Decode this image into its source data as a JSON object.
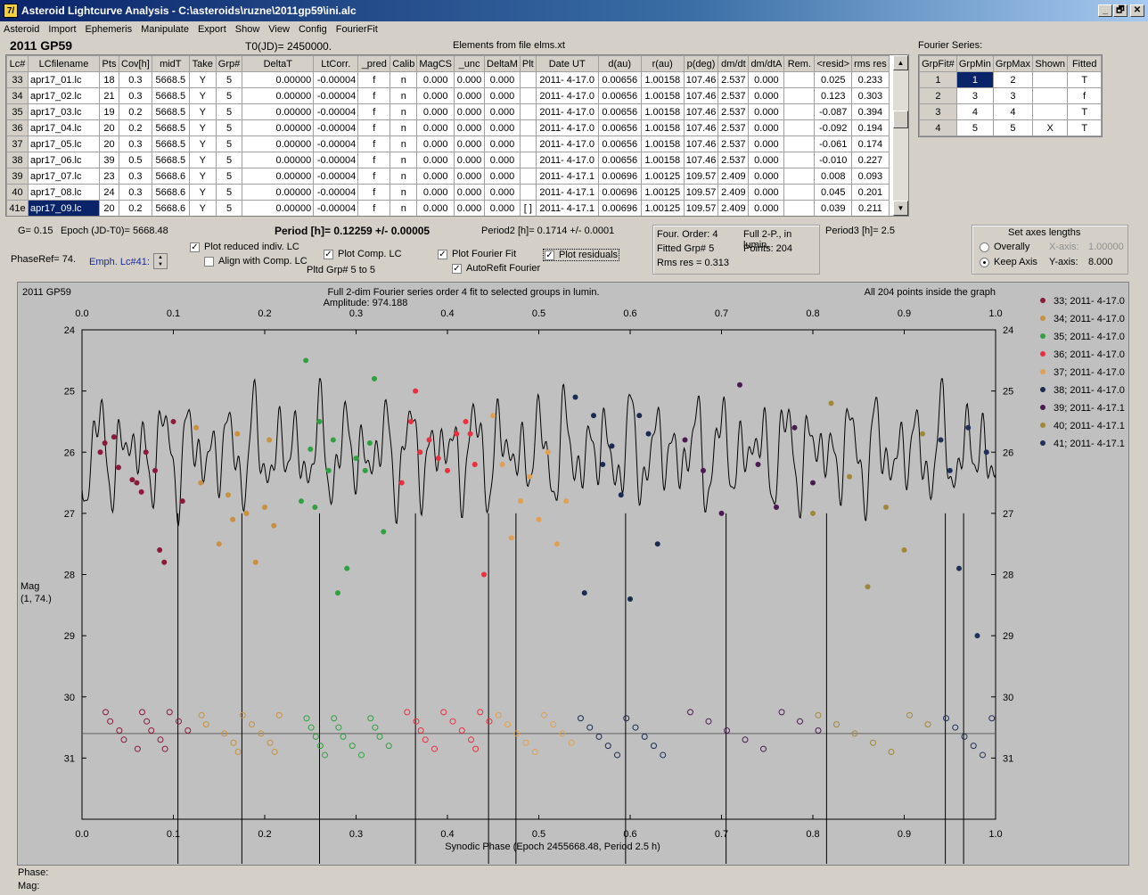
{
  "window": {
    "title": "Asteroid Lightcurve Analysis - C:\\asteroids\\ruzne\\2011gp59\\ini.alc",
    "logo": "7/",
    "min": "_",
    "max": "🗗",
    "close": "✕"
  },
  "menu": [
    "Asteroid",
    "Import",
    "Ephemeris",
    "Manipulate",
    "Export",
    "Show",
    "View",
    "Config",
    "FourierFit"
  ],
  "header": {
    "object": "2011 GP59",
    "t0": "T0(JD)= 2450000.",
    "elements": "Elements from file elms.xt",
    "fourier_title": "Fourier Series:"
  },
  "lc_table": {
    "columns": [
      "Lc#",
      "LCfilename",
      "Pts",
      "Cov[h]",
      "midT",
      "Take",
      "Grp#",
      "DeltaT",
      "LtCorr.",
      "_pred",
      "Calib",
      "MagCS",
      "_unc",
      "DeltaM",
      "Plt",
      "Date UT",
      "d(au)",
      "r(au)",
      "p(deg)",
      "dm/dt",
      "dm/dtA",
      "Rem.",
      "<resid>",
      "rms res"
    ],
    "rows": [
      [
        "33",
        "apr17_01.lc",
        "18",
        "0.3",
        "5668.5",
        "Y",
        "5",
        "0.00000",
        "-0.00004",
        "f",
        "n",
        "0.000",
        "0.000",
        "0.000",
        "",
        "2011- 4-17.0",
        "0.00656",
        "1.00158",
        "107.46",
        "2.537",
        "0.000",
        "",
        "0.025",
        "0.233"
      ],
      [
        "34",
        "apr17_02.lc",
        "21",
        "0.3",
        "5668.5",
        "Y",
        "5",
        "0.00000",
        "-0.00004",
        "f",
        "n",
        "0.000",
        "0.000",
        "0.000",
        "",
        "2011- 4-17.0",
        "0.00656",
        "1.00158",
        "107.46",
        "2.537",
        "0.000",
        "",
        "0.123",
        "0.303"
      ],
      [
        "35",
        "apr17_03.lc",
        "19",
        "0.2",
        "5668.5",
        "Y",
        "5",
        "0.00000",
        "-0.00004",
        "f",
        "n",
        "0.000",
        "0.000",
        "0.000",
        "",
        "2011- 4-17.0",
        "0.00656",
        "1.00158",
        "107.46",
        "2.537",
        "0.000",
        "",
        "-0.087",
        "0.394"
      ],
      [
        "36",
        "apr17_04.lc",
        "20",
        "0.2",
        "5668.5",
        "Y",
        "5",
        "0.00000",
        "-0.00004",
        "f",
        "n",
        "0.000",
        "0.000",
        "0.000",
        "",
        "2011- 4-17.0",
        "0.00656",
        "1.00158",
        "107.46",
        "2.537",
        "0.000",
        "",
        "-0.092",
        "0.194"
      ],
      [
        "37",
        "apr17_05.lc",
        "20",
        "0.3",
        "5668.5",
        "Y",
        "5",
        "0.00000",
        "-0.00004",
        "f",
        "n",
        "0.000",
        "0.000",
        "0.000",
        "",
        "2011- 4-17.0",
        "0.00656",
        "1.00158",
        "107.46",
        "2.537",
        "0.000",
        "",
        "-0.061",
        "0.174"
      ],
      [
        "38",
        "apr17_06.lc",
        "39",
        "0.5",
        "5668.5",
        "Y",
        "5",
        "0.00000",
        "-0.00004",
        "f",
        "n",
        "0.000",
        "0.000",
        "0.000",
        "",
        "2011- 4-17.0",
        "0.00656",
        "1.00158",
        "107.46",
        "2.537",
        "0.000",
        "",
        "-0.010",
        "0.227"
      ],
      [
        "39",
        "apr17_07.lc",
        "23",
        "0.3",
        "5668.6",
        "Y",
        "5",
        "0.00000",
        "-0.00004",
        "f",
        "n",
        "0.000",
        "0.000",
        "0.000",
        "",
        "2011- 4-17.1",
        "0.00696",
        "1.00125",
        "109.57",
        "2.409",
        "0.000",
        "",
        "0.008",
        "0.093"
      ],
      [
        "40",
        "apr17_08.lc",
        "24",
        "0.3",
        "5668.6",
        "Y",
        "5",
        "0.00000",
        "-0.00004",
        "f",
        "n",
        "0.000",
        "0.000",
        "0.000",
        "",
        "2011- 4-17.1",
        "0.00696",
        "1.00125",
        "109.57",
        "2.409",
        "0.000",
        "",
        "0.045",
        "0.201"
      ],
      [
        "41e",
        "apr17_09.lc",
        "20",
        "0.2",
        "5668.6",
        "Y",
        "5",
        "0.00000",
        "-0.00004",
        "f",
        "n",
        "0.000",
        "0.000",
        "0.000",
        "[ ]",
        "2011- 4-17.1",
        "0.00696",
        "1.00125",
        "109.57",
        "2.409",
        "0.000",
        "",
        "0.039",
        "0.211"
      ]
    ]
  },
  "fourier_table": {
    "columns": [
      "GrpFit#",
      "GrpMin",
      "GrpMax",
      "Shown",
      "Fitted"
    ],
    "rows": [
      [
        "1",
        "1",
        "2",
        "",
        "T"
      ],
      [
        "2",
        "3",
        "3",
        "",
        "f"
      ],
      [
        "3",
        "4",
        "4",
        "",
        "T"
      ],
      [
        "4",
        "5",
        "5",
        "X",
        "T"
      ]
    ]
  },
  "info": {
    "g": "G= 0.15",
    "epoch": "Epoch (JD-T0)= 5668.48",
    "period": "Period [h]= 0.12259 +/- 0.00005",
    "period2": "Period2 [h]= 0.1714 +/- 0.0001",
    "period3": "Period3 [h]= 2.5",
    "phaseref": "PhaseRef= 74.",
    "emph": "Emph. Lc#41:",
    "plot_reduced": "Plot reduced indiv. LC",
    "align": "Align with Comp. LC",
    "plot_comp": "Plot Comp. LC",
    "pltd_grp": "Pltd Grp#  5   to   5",
    "plot_fourier": "Plot Fourier Fit",
    "autorefit": "AutoRefit Fourier",
    "plot_residuals": "Plot residuals",
    "four_order": "Four. Order:  4",
    "full2p": "Full 2-P., in lumin.",
    "fitted_grp": "Fitted Grp# 5",
    "points": "Points: 204",
    "rms": "Rms res     = 0.313",
    "axes_title": "Set axes lengths",
    "overally": "Overally",
    "keep_axis": "Keep Axis",
    "xaxis_lbl": "X-axis:",
    "xaxis_val": "1.00000",
    "yaxis_lbl": "Y-axis:",
    "yaxis_val": "8.000",
    "phase_lbl": "Phase:",
    "mag_lbl": "Mag:"
  },
  "chart_data": {
    "type": "scatter",
    "object": "2011 GP59",
    "title": "Full 2-dim Fourier series order 4 fit to selected groups in lumin.",
    "subtitle": "Amplitude: 974.188",
    "note": "All 204 points inside the graph",
    "xlabel": "Synodic Phase (Epoch 2455668.48, Period 2.5 h)",
    "ylabel": "Mag",
    "ylabel2": "(1, 74.)",
    "xlim": [
      0.0,
      1.0
    ],
    "ylim": [
      24,
      32
    ],
    "y_inverted": true,
    "xticks": [
      "0.0",
      "0.1",
      "0.2",
      "0.3",
      "0.4",
      "0.5",
      "0.6",
      "0.7",
      "0.8",
      "0.9",
      "1.0"
    ],
    "yticks": [
      "24",
      "25",
      "26",
      "27",
      "28",
      "29",
      "30",
      "31"
    ],
    "residual_baseline": 30.6,
    "series": [
      {
        "name": "33; 2011- 4-17.0",
        "color": "#8b1a3a",
        "x": [
          0.02,
          0.025,
          0.035,
          0.04,
          0.055,
          0.06,
          0.065,
          0.07,
          0.08,
          0.085,
          0.09,
          0.1,
          0.11
        ],
        "y": [
          26.0,
          25.85,
          25.75,
          26.25,
          26.45,
          26.5,
          26.65,
          26.0,
          26.3,
          27.6,
          27.8,
          25.5,
          26.8
        ]
      },
      {
        "name": "34; 2011- 4-17.0",
        "color": "#c89040",
        "x": [
          0.125,
          0.13,
          0.15,
          0.16,
          0.165,
          0.17,
          0.18,
          0.19,
          0.2,
          0.205,
          0.21
        ],
        "y": [
          25.6,
          26.5,
          27.5,
          26.7,
          27.1,
          25.7,
          27.0,
          27.8,
          26.9,
          25.8,
          27.2
        ]
      },
      {
        "name": "35; 2011- 4-17.0",
        "color": "#30a040",
        "x": [
          0.24,
          0.245,
          0.25,
          0.255,
          0.26,
          0.27,
          0.275,
          0.28,
          0.29,
          0.3,
          0.31,
          0.315,
          0.32,
          0.33
        ],
        "y": [
          26.8,
          24.5,
          25.95,
          26.9,
          25.5,
          26.3,
          25.8,
          28.3,
          27.9,
          26.1,
          26.3,
          25.85,
          24.8,
          27.3
        ]
      },
      {
        "name": "36; 2011- 4-17.0",
        "color": "#e83040",
        "x": [
          0.35,
          0.36,
          0.365,
          0.37,
          0.38,
          0.39,
          0.4,
          0.41,
          0.42,
          0.425,
          0.43,
          0.44
        ],
        "y": [
          26.5,
          25.5,
          25.0,
          26.0,
          25.8,
          26.1,
          26.3,
          25.7,
          25.5,
          25.7,
          26.2,
          28.0
        ]
      },
      {
        "name": "37; 2011- 4-17.0",
        "color": "#e0a050",
        "x": [
          0.45,
          0.46,
          0.47,
          0.48,
          0.49,
          0.5,
          0.51,
          0.52,
          0.53
        ],
        "y": [
          25.4,
          26.2,
          27.4,
          26.8,
          26.4,
          27.1,
          26.0,
          27.5,
          26.8
        ]
      },
      {
        "name": "38; 2011- 4-17.0",
        "color": "#1a2a50",
        "x": [
          0.54,
          0.55,
          0.56,
          0.57,
          0.58,
          0.59,
          0.6,
          0.61,
          0.62,
          0.63
        ],
        "y": [
          25.1,
          28.3,
          25.4,
          26.2,
          25.9,
          26.7,
          28.4,
          25.4,
          25.7,
          27.5
        ]
      },
      {
        "name": "39; 2011- 4-17.1",
        "color": "#4a1a50",
        "x": [
          0.66,
          0.68,
          0.7,
          0.72,
          0.74,
          0.76,
          0.78,
          0.8
        ],
        "y": [
          25.8,
          26.3,
          27.0,
          24.9,
          26.2,
          26.9,
          25.6,
          26.5
        ]
      },
      {
        "name": "40; 2011- 4-17.1",
        "color": "#a08838",
        "x": [
          0.8,
          0.82,
          0.84,
          0.86,
          0.88,
          0.9,
          0.92
        ],
        "y": [
          27.0,
          25.2,
          26.4,
          28.2,
          26.9,
          27.6,
          25.7
        ]
      },
      {
        "name": "41; 2011- 4-17.1",
        "color": "#203058",
        "x": [
          0.94,
          0.95,
          0.96,
          0.97,
          0.98,
          0.99
        ],
        "y": [
          25.8,
          26.3,
          27.9,
          25.6,
          29.0,
          26.0
        ]
      }
    ]
  }
}
